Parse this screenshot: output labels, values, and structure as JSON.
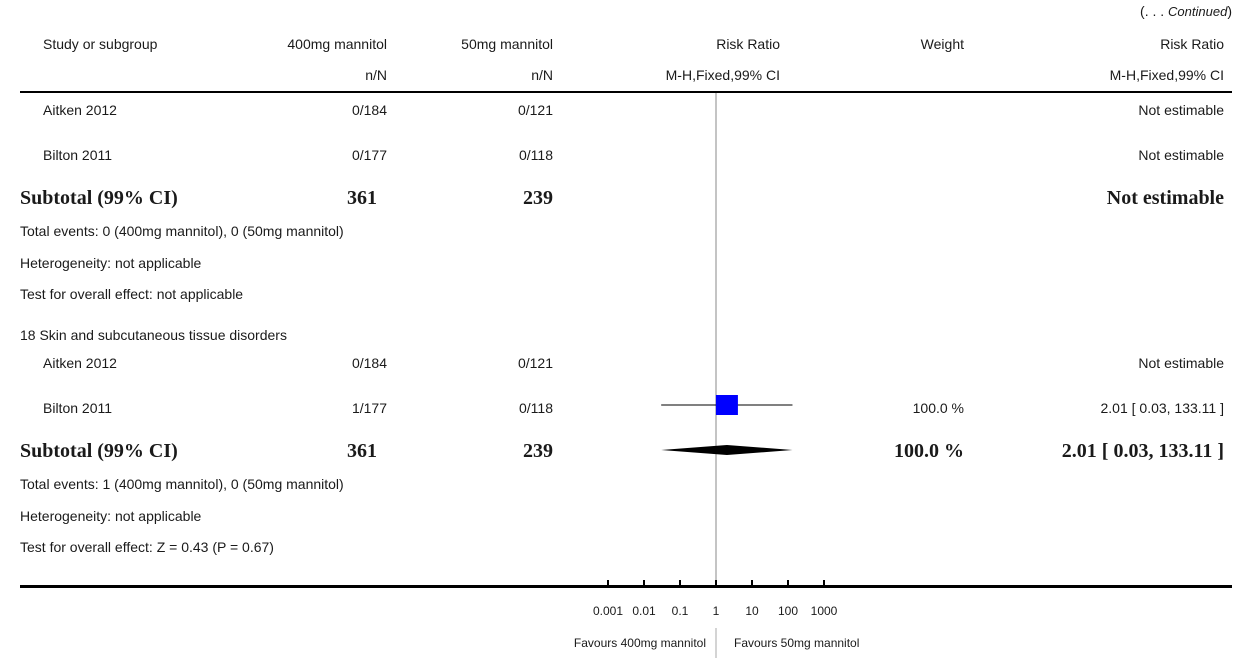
{
  "continued": {
    "open": "(. . .",
    "word": "Continued",
    "close": ")"
  },
  "header": {
    "study": "Study or subgroup",
    "group1": "400mg mannitol",
    "group2": "50mg mannitol",
    "rr": "Risk Ratio",
    "weight": "Weight",
    "rr2": "Risk Ratio",
    "n1": "n/N",
    "n2": "n/N",
    "method": "M-H,Fixed,99% CI",
    "method2": "M-H,Fixed,99% CI"
  },
  "section1": {
    "studies": [
      {
        "name": "Aitken 2012",
        "g1": "0/184",
        "g2": "0/121",
        "weight": "",
        "rr": "Not estimable"
      },
      {
        "name": "Bilton 2011",
        "g1": "0/177",
        "g2": "0/118",
        "weight": "",
        "rr": "Not estimable"
      }
    ],
    "subtotal": {
      "label": "Subtotal (99% CI)",
      "g1": "361",
      "g2": "239",
      "weight": "",
      "rr": "Not estimable"
    },
    "notes": [
      "Total events: 0 (400mg mannitol), 0 (50mg mannitol)",
      "Heterogeneity: not applicable",
      "Test for overall effect: not applicable"
    ]
  },
  "section2": {
    "title": "18 Skin and subcutaneous tissue disorders",
    "studies": [
      {
        "name": "Aitken 2012",
        "g1": "0/184",
        "g2": "0/121",
        "weight": "",
        "rr": "Not estimable"
      },
      {
        "name": "Bilton 2011",
        "g1": "1/177",
        "g2": "0/118",
        "weight": "100.0 %",
        "rr": "2.01 [ 0.03, 133.11 ]"
      }
    ],
    "subtotal": {
      "label": "Subtotal (99% CI)",
      "g1": "361",
      "g2": "239",
      "weight": "100.0 %",
      "rr": "2.01 [ 0.03, 133.11 ]"
    },
    "notes": [
      "Total events: 1 (400mg mannitol), 0 (50mg mannitol)",
      "Heterogeneity: not applicable",
      "Test for overall effect: Z = 0.43 (P = 0.67)"
    ]
  },
  "axis": {
    "ticks": [
      "0.001",
      "0.01",
      "0.1",
      "1",
      "10",
      "100",
      "1000"
    ],
    "favours_left": "Favours 400mg mannitol",
    "favours_right": "Favours 50mg mannitol"
  },
  "chart_data": {
    "type": "forest",
    "x_scale": "log",
    "xlim": [
      0.001,
      1000
    ],
    "x_ticks": [
      0.001,
      0.01,
      0.1,
      1,
      10,
      100,
      1000
    ],
    "reference_line": 1,
    "colors": {
      "study_marker": "#0000ff",
      "summary_diamond": "#000000"
    },
    "studies": [
      {
        "section": 2,
        "name": "Bilton 2011",
        "estimate": 2.01,
        "ci": [
          0.03,
          133.11
        ],
        "weight": 100.0
      }
    ],
    "summaries": [
      {
        "section": 2,
        "label": "Subtotal (99% CI)",
        "estimate": 2.01,
        "ci": [
          0.03,
          133.11
        ]
      }
    ]
  }
}
